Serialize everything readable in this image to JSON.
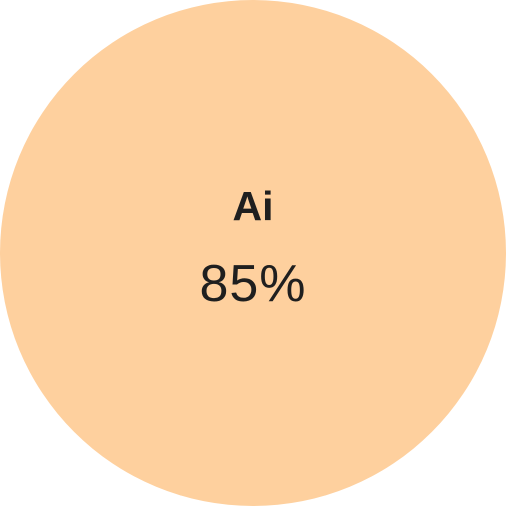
{
  "skill": {
    "name": "Ai",
    "value_label": "85%",
    "level": 0.85
  },
  "colors": {
    "circle_fill": "#FED09E",
    "text": "#1f1f1f",
    "background": "#ffffff"
  }
}
